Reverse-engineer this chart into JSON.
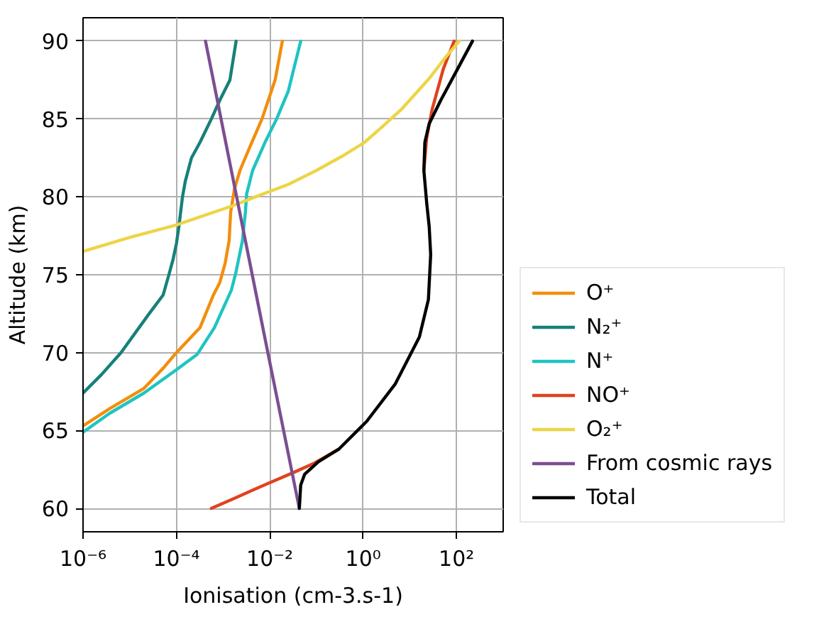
{
  "chart_data": {
    "type": "line",
    "xlabel": "Ionisation (cm-3.s-1)",
    "ylabel": "Altitude (km)",
    "log": "x",
    "grid": true,
    "legend": "right",
    "xlim": [
      1e-06,
      1000
    ],
    "xticks": [
      {
        "value": 1e-06,
        "label": "10⁻⁶"
      },
      {
        "value": 0.0001,
        "label": "10⁻⁴"
      },
      {
        "value": 0.01,
        "label": "10⁻²"
      },
      {
        "value": 1,
        "label": "10⁰"
      },
      {
        "value": 100,
        "label": "10²"
      }
    ],
    "ylim": [
      58.5,
      91.5
    ],
    "yticks": [
      60,
      65,
      70,
      75,
      80,
      85,
      90
    ],
    "series": [
      {
        "name": "O⁺",
        "color": "#f28e0c",
        "x": [
          1e-06,
          3.7e-06,
          2e-05,
          5.2e-05,
          0.0001,
          0.00032,
          0.00062,
          0.00085,
          0.0011,
          0.00135,
          0.00145,
          0.00175,
          0.0023,
          0.0035,
          0.0068,
          0.013,
          0.0186
        ],
        "values": [
          65.3,
          66.4,
          67.7,
          69.0,
          70.0,
          71.6,
          73.7,
          74.5,
          75.7,
          77.2,
          79.0,
          80.5,
          81.7,
          83.0,
          85.0,
          87.5,
          90.0
        ]
      },
      {
        "name": "N₂⁺",
        "color": "#16807a",
        "x": [
          1e-06,
          2.5e-06,
          6.5e-06,
          2.6e-05,
          5.2e-05,
          6.9e-05,
          8.5e-05,
          0.0001,
          0.000112,
          0.000135,
          0.000155,
          0.00021,
          0.00032,
          0.00056,
          0.00085,
          0.0014,
          0.0019
        ],
        "values": [
          67.4,
          68.6,
          70.0,
          72.5,
          73.7,
          75.0,
          76.0,
          77.0,
          78.0,
          80.0,
          81.0,
          82.5,
          83.5,
          85.0,
          86.2,
          87.5,
          90.0
        ]
      },
      {
        "name": "N⁺",
        "color": "#1ec4c2",
        "x": [
          1e-06,
          3.7e-06,
          2e-05,
          0.0001,
          0.00028,
          0.00065,
          0.0015,
          0.0019,
          0.0026,
          0.003,
          0.0032,
          0.0043,
          0.0079,
          0.014,
          0.025,
          0.032,
          0.046
        ],
        "values": [
          64.9,
          66.1,
          67.4,
          68.9,
          69.9,
          71.6,
          74.0,
          75.2,
          77.2,
          79.0,
          80.2,
          81.7,
          83.5,
          85.0,
          86.8,
          88.1,
          90.0
        ]
      },
      {
        "name": "NO⁺",
        "color": "#e0421f",
        "x": [
          0.00056,
          0.0016,
          0.0045,
          0.0091,
          0.032,
          0.089,
          0.3,
          null,
          20,
          23,
          30,
          52,
          89
        ],
        "values": [
          60.0,
          60.6,
          61.2,
          61.6,
          62.3,
          62.9,
          63.8,
          null,
          81.7,
          83.8,
          85.6,
          88.2,
          90.0
        ]
      },
      {
        "name": "O₂⁺",
        "color": "#ecd546",
        "x": [
          1e-06,
          1e-05,
          0.0001,
          0.0015,
          0.006,
          0.025,
          0.1,
          0.35,
          1.07,
          2.8,
          6.5,
          14,
          26,
          56,
          115
        ],
        "values": [
          76.5,
          77.4,
          78.2,
          79.4,
          80.1,
          80.8,
          81.7,
          82.6,
          83.5,
          84.6,
          85.6,
          86.7,
          87.6,
          88.9,
          90.0
        ]
      },
      {
        "name": "From cosmic rays",
        "color": "#7b4e91",
        "x": [
          0.043,
          0.0091,
          0.00195,
          0.00042
        ],
        "values": [
          60.0,
          70.0,
          80.0,
          90.0
        ]
      },
      {
        "name": "Total",
        "color": "#000000",
        "x": [
          0.043,
          0.046,
          0.056,
          0.11,
          0.3,
          1.2,
          4.9,
          16,
          25,
          28,
          26,
          23,
          20,
          21,
          26,
          46,
          105,
          220
        ],
        "values": [
          60.0,
          61.5,
          62.2,
          63.0,
          63.8,
          65.6,
          68.0,
          71.0,
          73.4,
          76.3,
          78.1,
          79.6,
          81.7,
          83.5,
          84.7,
          86.2,
          88.2,
          90.0
        ]
      }
    ]
  }
}
